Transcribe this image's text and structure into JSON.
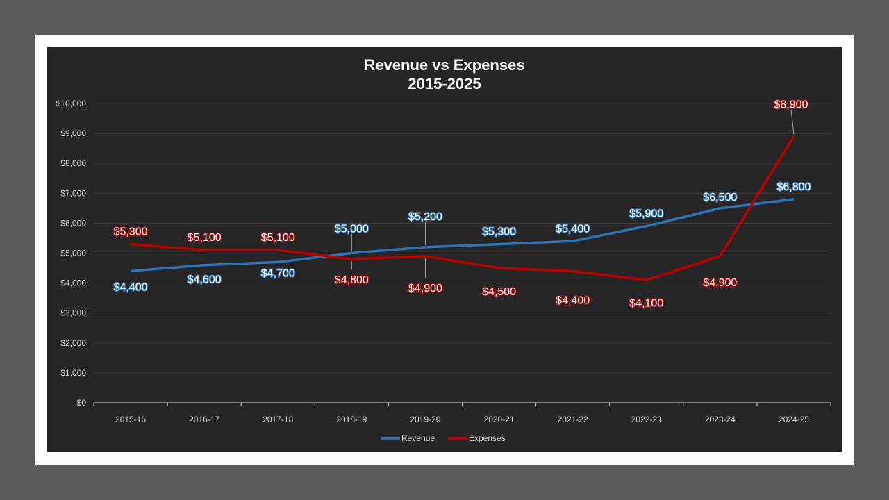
{
  "chart_data": {
    "type": "line",
    "title": "Revenue vs Expenses",
    "subtitle": "2015-2025",
    "xlabel": "",
    "ylabel": "",
    "categories": [
      "2015-16",
      "2016-17",
      "2017-18",
      "2018-19",
      "2019-20",
      "2020-21",
      "2021-22",
      "2022-23",
      "2023-24",
      "2024-25"
    ],
    "ylim": [
      0,
      10000
    ],
    "yticks": [
      0,
      1000,
      2000,
      3000,
      4000,
      5000,
      6000,
      7000,
      8000,
      9000,
      10000
    ],
    "ytick_labels": [
      "$0",
      "$1,000",
      "$2,000",
      "$3,000",
      "$4,000",
      "$5,000",
      "$6,000",
      "$7,000",
      "$8,000",
      "$9,000",
      "$10,000"
    ],
    "grid": true,
    "legend": "bottom",
    "series": [
      {
        "name": "Revenue",
        "color": "#2e75b6",
        "values": [
          4400,
          4600,
          4700,
          5000,
          5200,
          5300,
          5400,
          5900,
          6500,
          6800
        ],
        "labels": [
          "$4,400",
          "$4,600",
          "$4,700",
          "$5,000",
          "$5,200",
          "$5,300",
          "$5,400",
          "$5,900",
          "$6,500",
          "$6,800"
        ]
      },
      {
        "name": "Expenses",
        "color": "#c00000",
        "values": [
          5300,
          5100,
          5100,
          4800,
          4900,
          4500,
          4400,
          4100,
          4900,
          8900
        ],
        "labels": [
          "$5,300",
          "$5,100",
          "$5,100",
          "$4,800",
          "$4,900",
          "$4,500",
          "$4,400",
          "$4,100",
          "$4,900",
          "$8,900"
        ]
      }
    ]
  }
}
